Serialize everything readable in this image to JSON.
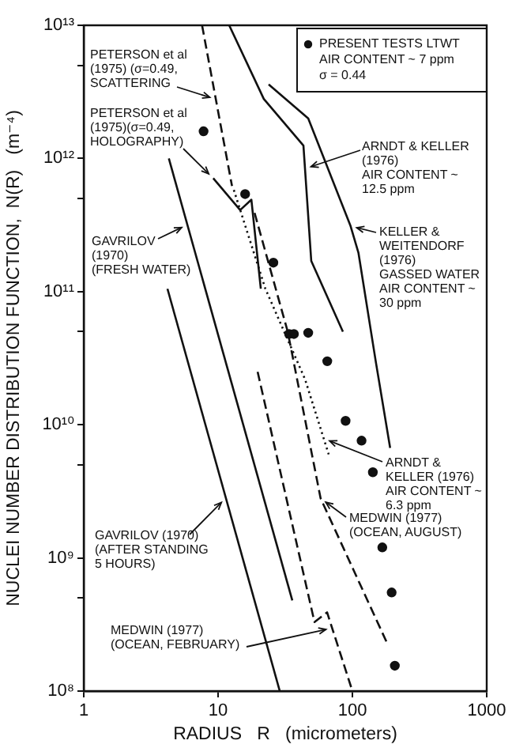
{
  "chart_data": {
    "type": "line",
    "xlabel": "RADIUS   R   (micrometers)",
    "ylabel": "NUCLEI NUMBER DISTRIBUTION FUNCTION,  N(R)   (m⁻⁴)",
    "log": "xy",
    "xlim": [
      1,
      1000
    ],
    "ylim": [
      100000000,
      10000000000000
    ],
    "xticks": [
      1,
      10,
      100,
      1000
    ],
    "yticks": [
      {
        "value": 100000000,
        "label": "10⁸"
      },
      {
        "value": 500000000,
        "label": null
      },
      {
        "value": 1000000000,
        "label": "10⁹"
      },
      {
        "value": 5000000000,
        "label": null
      },
      {
        "value": 10000000000,
        "label": "10¹⁰"
      },
      {
        "value": 50000000000,
        "label": null
      },
      {
        "value": 100000000000,
        "label": "10¹¹"
      },
      {
        "value": 500000000000,
        "label": null
      },
      {
        "value": 1000000000000,
        "label": "10¹²"
      },
      {
        "value": 5000000000000,
        "label": null
      },
      {
        "value": 10000000000000,
        "label": "10¹³"
      }
    ],
    "legend": "top right",
    "series": [
      {
        "name": "PRESENT TESTS LTWT\nAIR CONTENT ~ 7 ppm\nσ = 0.44",
        "type": "scatter",
        "marker": "circle",
        "color": "#111111",
        "x": [
          7.8,
          15.9,
          25.8,
          33.8,
          36.7,
          46.9,
          65,
          89,
          117,
          142,
          167,
          196,
          207
        ],
        "values": [
          1600000000000.0,
          540000000000.0,
          165000000000.0,
          48000000000.0,
          48000000000.0,
          49000000000.0,
          30000000000.0,
          10700000000.0,
          7600000000.0,
          4400000000.0,
          1200000000.0,
          550000000.0,
          155000000.0
        ]
      },
      {
        "name": "GAVRILOV\n(1970)\n(FRESH WATER)",
        "line_style": "solid",
        "color": "#111111",
        "x": [
          4.3,
          35.7
        ],
        "values": [
          1000000000000.0,
          480000000.0
        ]
      },
      {
        "name": "GAVRILOV (1970)\n(AFTER STANDING\n5 HOURS)",
        "line_style": "solid",
        "color": "#111111",
        "x": [
          4.2,
          28.8
        ],
        "values": [
          105000000000.0,
          100000000.0
        ]
      },
      {
        "name": "PETERSON et al\n(1975) (σ=0.49,\nSCATTERING",
        "line_style": "dashed",
        "color": "#111111",
        "x": [
          7.6,
          12.7
        ],
        "values": [
          10000000000000.0,
          620000000000.0
        ]
      },
      {
        "name": "PETERSON et al\n(1975)(σ=0.49,\nHOLOGRAPHY)",
        "line_style": "solid",
        "color": "#111111",
        "x": [
          9.2,
          14.6,
          17.7,
          20.8
        ],
        "values": [
          710000000000.0,
          410000000000.0,
          490000000000.0,
          105000000000.0
        ]
      },
      {
        "name": "ARNDT &\nKELLER (1976)\nAIR CONTENT ~\n6.3 ppm",
        "line_style": "dotted",
        "color": "#111111",
        "x": [
          13.1,
          22.5,
          44.4,
          66.6
        ],
        "values": [
          580000000000.0,
          105000000000.0,
          22000000000.0,
          6000000000.0
        ]
      },
      {
        "name": "MEDWIN (1977)\n(OCEAN, AUGUST)",
        "line_style": "dashed",
        "color": "#111111",
        "x": [
          18.7,
          33,
          58,
          181
        ],
        "values": [
          390000000000.0,
          50000000000.0,
          2800000000.0,
          230000000.0
        ]
      },
      {
        "name": "MEDWIN (1977)\n(OCEAN, FEBRUARY)",
        "line_style": "dashed",
        "color": "#111111",
        "x": [
          19.7,
          52.2,
          64.8,
          100
        ],
        "values": [
          25000000000.0,
          330000000.0,
          390000000.0,
          100000000.0
        ]
      },
      {
        "name": "ARNDT & KELLER\n(1976)\nAIR CONTENT ~\n12.5 ppm",
        "line_style": "solid",
        "color": "#111111",
        "x": [
          12.1,
          21.9,
          43.2,
          49.4,
          85
        ],
        "values": [
          10000000000000.0,
          2800000000000.0,
          1250000000000.0,
          170000000000.0,
          50000000000.0
        ]
      },
      {
        "name": "KELLER &\nWEITENDORF\n(1976)\nGASSED WATER\nAIR CONTENT ~\n30 ppm",
        "line_style": "solid",
        "color": "#111111",
        "x": [
          23.8,
          46.9,
          97,
          111,
          150,
          191
        ],
        "values": [
          3600000000000.0,
          2000000000000.0,
          310000000000.0,
          195000000000.0,
          29000000000.0,
          6700000000.0
        ]
      }
    ]
  }
}
